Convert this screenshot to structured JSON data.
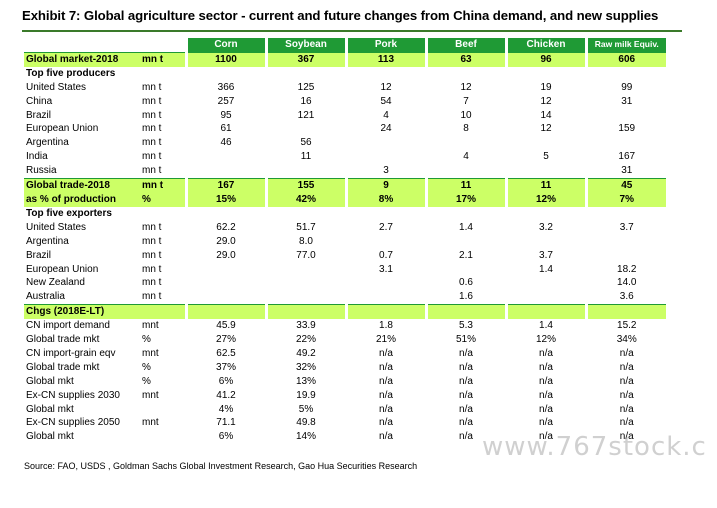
{
  "title": "Exhibit 7: Global agriculture sector - current and future changes from China demand, and new supplies",
  "columns": [
    "Corn",
    "Soybean",
    "Pork",
    "Beef",
    "Chicken",
    "Raw milk Equiv."
  ],
  "rows": [
    {
      "label": "Global market-2018",
      "unit": "mn t",
      "values": [
        "1100",
        "367",
        "113",
        "63",
        "96",
        "606"
      ],
      "style": "hl-top"
    },
    {
      "label": "Top five producers",
      "unit": "",
      "values": [
        "",
        "",
        "",
        "",
        "",
        ""
      ],
      "style": "section"
    },
    {
      "label": "United States",
      "unit": "mn t",
      "values": [
        "366",
        "125",
        "12",
        "12",
        "19",
        "99"
      ],
      "style": ""
    },
    {
      "label": "China",
      "unit": "mn t",
      "values": [
        "257",
        "16",
        "54",
        "7",
        "12",
        "31"
      ],
      "style": ""
    },
    {
      "label": "Brazil",
      "unit": "mn t",
      "values": [
        "95",
        "121",
        "4",
        "10",
        "14",
        ""
      ],
      "style": ""
    },
    {
      "label": "European Union",
      "unit": "mn t",
      "values": [
        "61",
        "",
        "24",
        "8",
        "12",
        "159"
      ],
      "style": ""
    },
    {
      "label": "Argentina",
      "unit": "mn t",
      "values": [
        "46",
        "56",
        "",
        "",
        "",
        ""
      ],
      "style": ""
    },
    {
      "label": "India",
      "unit": "mn t",
      "values": [
        "",
        "11",
        "",
        "4",
        "5",
        "167"
      ],
      "style": ""
    },
    {
      "label": "Russia",
      "unit": "mn t",
      "values": [
        "",
        "",
        "3",
        "",
        "",
        "31"
      ],
      "style": ""
    },
    {
      "label": "Global trade-2018",
      "unit": "mn t",
      "values": [
        "167",
        "155",
        "9",
        "11",
        "11",
        "45"
      ],
      "style": "hl-top"
    },
    {
      "label": "as % of production",
      "unit": "%",
      "values": [
        "15%",
        "42%",
        "8%",
        "17%",
        "12%",
        "7%"
      ],
      "style": "hl"
    },
    {
      "label": "Top five exporters",
      "unit": "",
      "values": [
        "",
        "",
        "",
        "",
        "",
        ""
      ],
      "style": "section"
    },
    {
      "label": "United States",
      "unit": "mn t",
      "values": [
        "62.2",
        "51.7",
        "2.7",
        "1.4",
        "3.2",
        "3.7"
      ],
      "style": ""
    },
    {
      "label": "Argentina",
      "unit": "mn t",
      "values": [
        "29.0",
        "8.0",
        "",
        "",
        "",
        ""
      ],
      "style": ""
    },
    {
      "label": "Brazil",
      "unit": "mn t",
      "values": [
        "29.0",
        "77.0",
        "0.7",
        "2.1",
        "3.7",
        ""
      ],
      "style": ""
    },
    {
      "label": "European Union",
      "unit": "mn t",
      "values": [
        "",
        "",
        "3.1",
        "",
        "1.4",
        "18.2"
      ],
      "style": ""
    },
    {
      "label": "New Zealand",
      "unit": "mn t",
      "values": [
        "",
        "",
        "",
        "0.6",
        "",
        "14.0"
      ],
      "style": ""
    },
    {
      "label": "Australia",
      "unit": "mn t",
      "values": [
        "",
        "",
        "",
        "1.6",
        "",
        "3.6"
      ],
      "style": ""
    },
    {
      "label": "Chgs (2018E-LT)",
      "unit": "",
      "values": [
        "",
        "",
        "",
        "",
        "",
        ""
      ],
      "style": "hl-top"
    },
    {
      "label": "CN import demand",
      "unit": "mnt",
      "values": [
        "45.9",
        "33.9",
        "1.8",
        "5.3",
        "1.4",
        "15.2"
      ],
      "style": ""
    },
    {
      "label": "Global trade mkt",
      "unit": "%",
      "values": [
        "27%",
        "22%",
        "21%",
        "51%",
        "12%",
        "34%"
      ],
      "style": ""
    },
    {
      "label": "CN import-grain eqv",
      "unit": "mnt",
      "values": [
        "62.5",
        "49.2",
        "n/a",
        "n/a",
        "n/a",
        "n/a"
      ],
      "style": ""
    },
    {
      "label": "Global trade mkt",
      "unit": "%",
      "values": [
        "37%",
        "32%",
        "n/a",
        "n/a",
        "n/a",
        "n/a"
      ],
      "style": ""
    },
    {
      "label": "Global mkt",
      "unit": "%",
      "values": [
        "6%",
        "13%",
        "n/a",
        "n/a",
        "n/a",
        "n/a"
      ],
      "style": ""
    },
    {
      "label": "Ex-CN supplies 2030",
      "unit": "mnt",
      "values": [
        "41.2",
        "19.9",
        "n/a",
        "n/a",
        "n/a",
        "n/a"
      ],
      "style": ""
    },
    {
      "label": "Global mkt",
      "unit": "",
      "values": [
        "4%",
        "5%",
        "n/a",
        "n/a",
        "n/a",
        "n/a"
      ],
      "style": ""
    },
    {
      "label": "Ex-CN supplies 2050",
      "unit": "mnt",
      "values": [
        "71.1",
        "49.8",
        "n/a",
        "n/a",
        "n/a",
        "n/a"
      ],
      "style": ""
    },
    {
      "label": "Global mkt",
      "unit": "",
      "values": [
        "6%",
        "14%",
        "n/a",
        "n/a",
        "n/a",
        "n/a"
      ],
      "style": ""
    }
  ],
  "source": "Source: FAO, USDS , Goldman Sachs Global Investment Research, Gao Hua Securities Research",
  "watermark": "www.767stock.c",
  "colors": {
    "header_green": "#1f9a35",
    "highlight": "#ccff66",
    "rule": "#3a7a2a"
  }
}
